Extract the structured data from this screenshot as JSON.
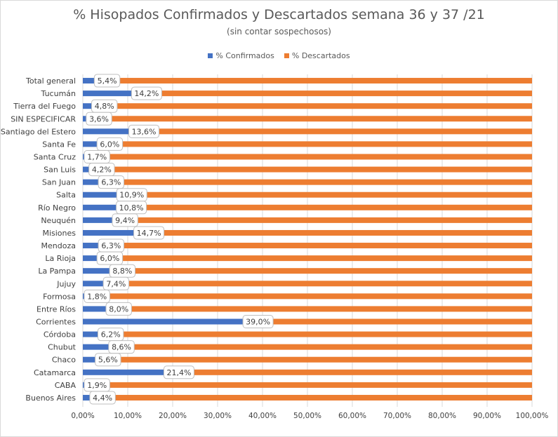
{
  "chart_data": {
    "type": "bar",
    "orientation": "horizontal",
    "stacked": true,
    "title": "% Hisopados Confirmados y Descartados semana 36 y 37 /21",
    "subtitle": "(sin contar sospechosos)",
    "legend_position": "top",
    "xlim": [
      0,
      100
    ],
    "x_ticks": [
      "0,00%",
      "10,00%",
      "20,00%",
      "30,00%",
      "40,00%",
      "50,00%",
      "60,00%",
      "70,00%",
      "80,00%",
      "90,00%",
      "100,00%"
    ],
    "x_tick_values": [
      0,
      10,
      20,
      30,
      40,
      50,
      60,
      70,
      80,
      90,
      100
    ],
    "grid": true,
    "categories": [
      "Total general",
      "Tucumán",
      "Tierra del Fuego",
      "SIN ESPECIFICAR",
      "Santiago del Estero",
      "Santa Fe",
      "Santa Cruz",
      "San Luis",
      "San Juan",
      "Salta",
      "Río Negro",
      "Neuquén",
      "Misiones",
      "Mendoza",
      "La Rioja",
      "La Pampa",
      "Jujuy",
      "Formosa",
      "Entre Ríos",
      "Corrientes",
      "Córdoba",
      "Chubut",
      "Chaco",
      "Catamarca",
      "CABA",
      "Buenos Aires"
    ],
    "series": [
      {
        "name": "% Confirmados",
        "color": "#4472c4",
        "values": [
          5.4,
          14.2,
          4.8,
          3.6,
          13.6,
          6.0,
          1.7,
          4.2,
          6.3,
          10.9,
          10.8,
          9.4,
          14.7,
          6.3,
          6.0,
          8.8,
          7.4,
          1.8,
          8.0,
          39.0,
          6.2,
          8.6,
          5.6,
          21.4,
          1.9,
          4.4
        ],
        "labels": [
          "5,4%",
          "14,2%",
          "4,8%",
          "3,6%",
          "13,6%",
          "6,0%",
          "1,7%",
          "4,2%",
          "6,3%",
          "10,9%",
          "10,8%",
          "9,4%",
          "14,7%",
          "6,3%",
          "6,0%",
          "8,8%",
          "7,4%",
          "1,8%",
          "8,0%",
          "39,0%",
          "6,2%",
          "8,6%",
          "5,6%",
          "21,4%",
          "1,9%",
          "4,4%"
        ]
      },
      {
        "name": "% Descartados",
        "color": "#ed7d31",
        "values": [
          94.6,
          85.8,
          95.2,
          96.4,
          86.4,
          94.0,
          98.3,
          95.8,
          93.7,
          89.1,
          89.2,
          90.6,
          85.3,
          93.7,
          94.0,
          91.2,
          92.6,
          98.2,
          92.0,
          61.0,
          93.8,
          91.4,
          94.4,
          78.6,
          98.1,
          95.6
        ]
      }
    ]
  }
}
